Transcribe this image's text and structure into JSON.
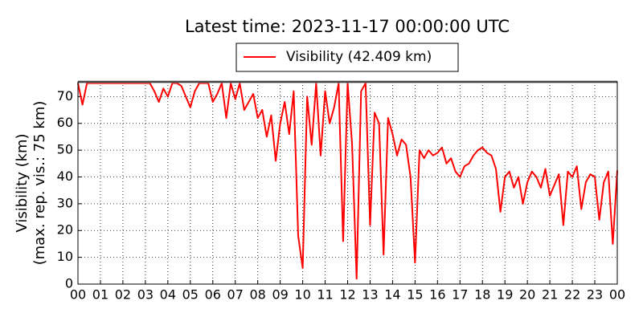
{
  "chart_data": {
    "type": "line",
    "title": "Latest time: 2023-11-17 00:00:00 UTC",
    "ylabel": [
      "Visibility (km)",
      "(max. rep. vis.: 75 km)"
    ],
    "x": [
      0.0,
      0.2,
      0.4,
      0.6,
      0.8,
      1.0,
      1.2,
      1.4,
      1.6,
      1.8,
      2.0,
      2.2,
      2.4,
      2.6,
      2.8,
      3.0,
      3.2,
      3.4,
      3.6,
      3.8,
      4.0,
      4.2,
      4.4,
      4.6,
      4.8,
      5.0,
      5.2,
      5.4,
      5.6,
      5.8,
      6.0,
      6.2,
      6.4,
      6.6,
      6.8,
      7.0,
      7.2,
      7.4,
      7.6,
      7.8,
      8.0,
      8.2,
      8.4,
      8.6,
      8.8,
      9.0,
      9.2,
      9.4,
      9.6,
      9.8,
      10.0,
      10.2,
      10.4,
      10.6,
      10.8,
      11.0,
      11.2,
      11.4,
      11.6,
      11.8,
      12.0,
      12.2,
      12.4,
      12.6,
      12.8,
      13.0,
      13.2,
      13.4,
      13.6,
      13.8,
      14.0,
      14.2,
      14.4,
      14.6,
      14.8,
      15.0,
      15.2,
      15.4,
      15.6,
      15.8,
      16.0,
      16.2,
      16.4,
      16.6,
      16.8,
      17.0,
      17.2,
      17.4,
      17.6,
      17.8,
      18.0,
      18.2,
      18.4,
      18.6,
      18.8,
      19.0,
      19.2,
      19.4,
      19.6,
      19.8,
      20.0,
      20.2,
      20.4,
      20.6,
      20.8,
      21.0,
      21.2,
      21.4,
      21.6,
      21.8,
      22.0,
      22.2,
      22.4,
      22.6,
      22.8,
      23.0,
      23.2,
      23.4,
      23.6,
      23.8,
      24.0
    ],
    "series": [
      {
        "name": "Visibility (42.409 km)",
        "color": "#ff0000",
        "values": [
          75,
          67,
          75,
          75,
          75,
          75,
          75,
          75,
          75,
          75,
          75,
          75,
          75,
          75,
          75,
          75,
          75,
          72,
          68,
          73,
          70,
          75,
          75,
          74,
          70,
          66,
          72,
          75,
          75,
          75,
          68,
          71,
          75,
          62,
          75,
          69,
          75,
          65,
          68,
          71,
          62,
          65,
          55,
          63,
          46,
          60,
          68,
          56,
          72,
          18,
          6,
          70,
          52,
          75,
          48,
          72,
          60,
          66,
          75,
          16,
          75,
          52,
          2,
          72,
          75,
          22,
          64,
          60,
          11,
          62,
          56,
          48,
          54,
          52,
          40,
          8,
          50,
          47,
          50,
          48,
          49,
          51,
          45,
          47,
          42,
          40,
          44,
          45,
          48,
          50,
          51,
          49,
          48,
          43,
          27,
          40,
          42,
          36,
          40,
          30,
          38,
          42,
          40,
          36,
          43,
          33,
          37,
          41,
          22,
          42,
          40,
          44,
          28,
          38,
          41,
          40,
          24,
          38,
          42,
          15,
          42.409
        ]
      }
    ],
    "xlim": [
      0,
      24
    ],
    "xticks": [
      {
        "value": 0,
        "label": "00"
      },
      {
        "value": 1,
        "label": "01"
      },
      {
        "value": 2,
        "label": "02"
      },
      {
        "value": 3,
        "label": "03"
      },
      {
        "value": 4,
        "label": "04"
      },
      {
        "value": 5,
        "label": "05"
      },
      {
        "value": 6,
        "label": "06"
      },
      {
        "value": 7,
        "label": "07"
      },
      {
        "value": 8,
        "label": "08"
      },
      {
        "value": 9,
        "label": "09"
      },
      {
        "value": 10,
        "label": "10"
      },
      {
        "value": 11,
        "label": "11"
      },
      {
        "value": 12,
        "label": "12"
      },
      {
        "value": 13,
        "label": "13"
      },
      {
        "value": 14,
        "label": "14"
      },
      {
        "value": 15,
        "label": "15"
      },
      {
        "value": 16,
        "label": "16"
      },
      {
        "value": 17,
        "label": "17"
      },
      {
        "value": 18,
        "label": "18"
      },
      {
        "value": 19,
        "label": "19"
      },
      {
        "value": 20,
        "label": "20"
      },
      {
        "value": 21,
        "label": "21"
      },
      {
        "value": 22,
        "label": "22"
      },
      {
        "value": 23,
        "label": "23"
      },
      {
        "value": 24,
        "label": "00"
      }
    ],
    "ylim": [
      0,
      75.5
    ],
    "yticks": [
      0,
      10,
      20,
      30,
      40,
      50,
      60,
      70
    ],
    "grid": true
  }
}
